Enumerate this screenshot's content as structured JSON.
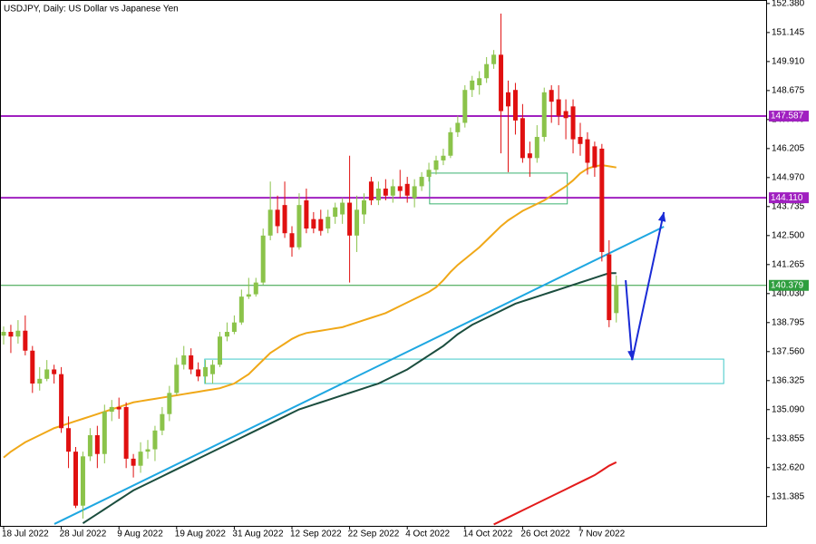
{
  "chart_data": {
    "type": "candlestick",
    "title": "USDJPY, Daily:  US Dollar vs Japanese Yen",
    "categories": [
      "18 Jul 2022",
      null,
      null,
      null,
      null,
      null,
      null,
      null,
      "28 Jul 2022",
      null,
      null,
      null,
      null,
      null,
      null,
      null,
      "9 Aug 2022",
      null,
      null,
      null,
      null,
      null,
      null,
      null,
      "19 Aug 2022",
      null,
      null,
      null,
      null,
      null,
      null,
      null,
      "31 Aug 2022",
      null,
      null,
      null,
      null,
      null,
      null,
      null,
      "12 Sep 2022",
      null,
      null,
      null,
      null,
      null,
      null,
      null,
      "22 Sep 2022",
      null,
      null,
      null,
      null,
      null,
      null,
      null,
      "4 Oct 2022",
      null,
      null,
      null,
      null,
      null,
      null,
      null,
      "14 Oct 2022",
      null,
      null,
      null,
      null,
      null,
      null,
      null,
      "26 Oct 2022",
      null,
      null,
      null,
      null,
      null,
      null,
      null,
      "7 Nov 2022",
      null,
      null,
      null,
      null,
      null
    ],
    "open": [
      138.24,
      138.4,
      138.2,
      138.45,
      137.6,
      136.2,
      136.4,
      136.8,
      136.6,
      134.3,
      133.3,
      131.0,
      133.1,
      134.0,
      133.2,
      135.0,
      135.2,
      135.2,
      133.0,
      132.7,
      133.3,
      133.4,
      134.2,
      134.9,
      135.8,
      137.0,
      137.4,
      136.8,
      136.5,
      136.6,
      137.0,
      138.2,
      138.4,
      138.8,
      139.9,
      140.0,
      140.5,
      142.5,
      143.6,
      143.8,
      142.6,
      142.0,
      144.0,
      143.2,
      143.2,
      142.8,
      143.3,
      143.4,
      143.9,
      142.5,
      143.4,
      144.8,
      144.0,
      144.5,
      144.2,
      144.6,
      144.7,
      144.1,
      144.6,
      145.0,
      145.3,
      145.7,
      145.9,
      146.9,
      147.3,
      148.7,
      148.9,
      149.2,
      149.8,
      150.2,
      148.6,
      148.7,
      147.5,
      146.0,
      145.8,
      146.7,
      148.7,
      148.3,
      147.8,
      148.0,
      146.7,
      146.6,
      146.3,
      146.2,
      141.7,
      139.2
    ],
    "high": [
      138.63,
      138.7,
      138.9,
      139.1,
      137.8,
      136.9,
      137.2,
      137.0,
      136.9,
      134.8,
      133.5,
      133.3,
      134.3,
      134.4,
      135.3,
      135.5,
      135.6,
      135.4,
      133.2,
      133.7,
      133.8,
      134.4,
      135.2,
      136.1,
      137.3,
      137.8,
      137.7,
      137.1,
      137.2,
      137.2,
      138.4,
      138.8,
      139.1,
      140.2,
      140.7,
      140.7,
      142.8,
      144.8,
      144.2,
      144.8,
      142.9,
      144.3,
      144.5,
      143.5,
      143.6,
      143.6,
      143.9,
      144.1,
      145.9,
      144.2,
      144.3,
      145.0,
      144.8,
      144.9,
      144.9,
      145.3,
      145.0,
      144.9,
      145.2,
      145.6,
      145.9,
      146.2,
      147.1,
      147.6,
      148.9,
      149.3,
      149.5,
      150.1,
      150.4,
      151.95,
      149.1,
      149.0,
      148.1,
      146.5,
      147.2,
      148.8,
      148.9,
      148.9,
      148.3,
      148.3,
      147.3,
      146.9,
      146.5,
      146.4,
      142.3,
      140.8
    ],
    "low": [
      137.86,
      137.5,
      137.9,
      137.4,
      135.8,
      135.9,
      136.3,
      136.2,
      134.1,
      132.6,
      130.9,
      130.45,
      132.9,
      132.6,
      132.8,
      134.6,
      134.7,
      132.6,
      132.2,
      132.4,
      133.0,
      132.9,
      134.0,
      134.6,
      135.7,
      136.8,
      136.6,
      136.3,
      136.2,
      136.2,
      136.9,
      138.0,
      138.3,
      138.7,
      139.8,
      139.9,
      140.4,
      142.3,
      142.6,
      142.4,
      141.6,
      141.9,
      142.6,
      142.6,
      142.5,
      142.6,
      143.0,
      143.0,
      140.5,
      141.8,
      143.0,
      143.8,
      143.8,
      144.0,
      143.9,
      144.1,
      143.9,
      143.7,
      144.4,
      144.8,
      145.1,
      145.5,
      145.8,
      146.7,
      147.1,
      148.4,
      148.5,
      149.0,
      149.6,
      146.0,
      145.2,
      146.8,
      145.6,
      145.0,
      145.6,
      146.5,
      147.3,
      147.2,
      146.6,
      146.0,
      145.9,
      145.1,
      145.0,
      141.4,
      138.6,
      138.8
    ],
    "close": [
      138.4,
      138.2,
      138.45,
      137.6,
      136.2,
      136.4,
      136.8,
      136.6,
      134.3,
      133.3,
      131.0,
      133.1,
      134.0,
      133.2,
      135.0,
      135.2,
      135.1,
      133.0,
      132.7,
      133.3,
      133.4,
      134.2,
      134.9,
      135.8,
      137.0,
      137.4,
      136.8,
      136.5,
      136.9,
      137.0,
      138.2,
      138.4,
      138.8,
      139.9,
      140.0,
      140.5,
      142.5,
      143.6,
      142.9,
      142.6,
      142.0,
      143.8,
      142.8,
      142.8,
      142.7,
      143.3,
      143.7,
      143.9,
      142.5,
      143.6,
      144.0,
      144.0,
      144.5,
      144.2,
      144.6,
      144.4,
      144.2,
      144.6,
      145.0,
      145.3,
      145.7,
      145.9,
      146.9,
      147.3,
      148.7,
      149.1,
      149.2,
      149.8,
      150.2,
      147.8,
      148.0,
      147.4,
      145.8,
      145.8,
      146.7,
      148.6,
      148.2,
      147.6,
      147.5,
      146.6,
      146.4,
      145.6,
      145.4,
      141.8,
      138.9,
      140.4
    ],
    "up_color": "#8bc34a",
    "down_color": "#e01010",
    "overlays": [
      {
        "color": "#f0a818",
        "values": [
          133.05,
          133.3,
          133.5,
          133.7,
          133.85,
          134.0,
          134.15,
          134.3,
          134.4,
          134.5,
          134.6,
          134.7,
          134.8,
          134.9,
          135.0,
          135.1,
          135.2,
          135.3,
          135.4,
          135.45,
          135.5,
          135.55,
          135.6,
          135.65,
          135.7,
          135.75,
          135.8,
          135.85,
          135.9,
          135.95,
          136.0,
          136.1,
          136.2,
          136.4,
          136.6,
          136.9,
          137.2,
          137.5,
          137.7,
          137.9,
          138.1,
          138.25,
          138.35,
          138.4,
          138.45,
          138.5,
          138.55,
          138.6,
          138.7,
          138.8,
          138.9,
          139.0,
          139.1,
          139.2,
          139.35,
          139.5,
          139.65,
          139.8,
          139.95,
          140.1,
          140.3,
          140.6,
          140.95,
          141.25,
          141.5,
          141.75,
          142.0,
          142.3,
          142.6,
          142.9,
          143.15,
          143.35,
          143.55,
          143.7,
          143.85,
          144.0,
          144.2,
          144.4,
          144.6,
          144.85,
          145.15,
          145.35,
          145.45,
          145.5,
          145.45,
          145.4
        ]
      },
      {
        "color": "#1b4d3e",
        "values": [
          null,
          null,
          null,
          null,
          null,
          null,
          null,
          null,
          null,
          null,
          null,
          130.25,
          130.45,
          130.65,
          130.85,
          131.05,
          131.25,
          131.45,
          131.65,
          131.8,
          131.95,
          132.1,
          132.25,
          132.4,
          132.55,
          132.7,
          132.85,
          133.0,
          133.15,
          133.3,
          133.45,
          133.6,
          133.75,
          133.9,
          134.05,
          134.2,
          134.35,
          134.5,
          134.65,
          134.8,
          134.95,
          135.1,
          135.2,
          135.3,
          135.4,
          135.5,
          135.6,
          135.7,
          135.8,
          135.9,
          136.0,
          136.1,
          136.2,
          136.35,
          136.5,
          136.65,
          136.8,
          137.0,
          137.2,
          137.4,
          137.6,
          137.8,
          138.05,
          138.3,
          138.5,
          138.7,
          138.85,
          139.0,
          139.15,
          139.3,
          139.45,
          139.6,
          139.7,
          139.8,
          139.9,
          140.0,
          140.1,
          140.2,
          140.3,
          140.4,
          140.5,
          140.6,
          140.7,
          140.8,
          140.9,
          140.9
        ]
      },
      {
        "color": "#e31b1b",
        "values": [
          null,
          null,
          null,
          null,
          null,
          null,
          null,
          null,
          null,
          null,
          null,
          null,
          null,
          null,
          null,
          null,
          null,
          null,
          null,
          null,
          null,
          null,
          null,
          null,
          null,
          null,
          null,
          null,
          null,
          null,
          null,
          null,
          null,
          null,
          null,
          null,
          null,
          null,
          null,
          null,
          null,
          null,
          null,
          null,
          null,
          null,
          null,
          null,
          null,
          null,
          null,
          null,
          null,
          null,
          null,
          null,
          null,
          null,
          null,
          null,
          null,
          null,
          null,
          null,
          null,
          null,
          null,
          null,
          130.2,
          130.35,
          130.5,
          130.65,
          130.8,
          130.95,
          131.1,
          131.25,
          131.4,
          131.55,
          131.7,
          131.85,
          132.0,
          132.15,
          132.3,
          132.5,
          132.7,
          132.85
        ]
      }
    ],
    "levels": [
      {
        "value": 147.587,
        "color": "#a020c0"
      },
      {
        "value": 144.11,
        "label": "144.110",
        "color": "#a020c0"
      },
      {
        "value": 140.379,
        "color": "#2e9e3e"
      }
    ],
    "trendline": {
      "color": "#1ea7e1",
      "x": [
        7.04,
        91.6
      ],
      "y": [
        130.22,
        142.88
      ]
    },
    "arrow": {
      "color": "#1a2bd6",
      "x": [
        86.3,
        87.2,
        91.6
      ],
      "y": [
        140.6,
        137.2,
        143.5
      ]
    },
    "boxes": [
      {
        "color": "#3cb371",
        "x": [
          59.1,
          78.2
        ],
        "y": [
          143.85,
          145.16
        ]
      },
      {
        "color": "#40c8c8",
        "x": [
          27.9,
          99.9
        ],
        "y": [
          136.2,
          137.24
        ]
      }
    ],
    "ylim": [
      130.14,
      152.53
    ],
    "yticks": [
      {
        "value": 152.38,
        "label": "152.380"
      },
      151.145,
      {
        "value": 149.91,
        "label": "149.910"
      },
      148.675,
      {
        "value": 147.44,
        "label": "147.440"
      },
      146.205,
      {
        "value": 144.97,
        "label": "144.970"
      },
      143.735,
      {
        "value": 142.5,
        "label": "142.500"
      },
      141.265,
      {
        "value": 140.03,
        "label": "140.030"
      },
      138.795,
      {
        "value": 137.56,
        "label": "137.560"
      },
      136.325,
      {
        "value": 135.09,
        "label": "135.090"
      },
      133.855,
      {
        "value": 132.62,
        "label": "132.620"
      },
      131.385
    ]
  }
}
